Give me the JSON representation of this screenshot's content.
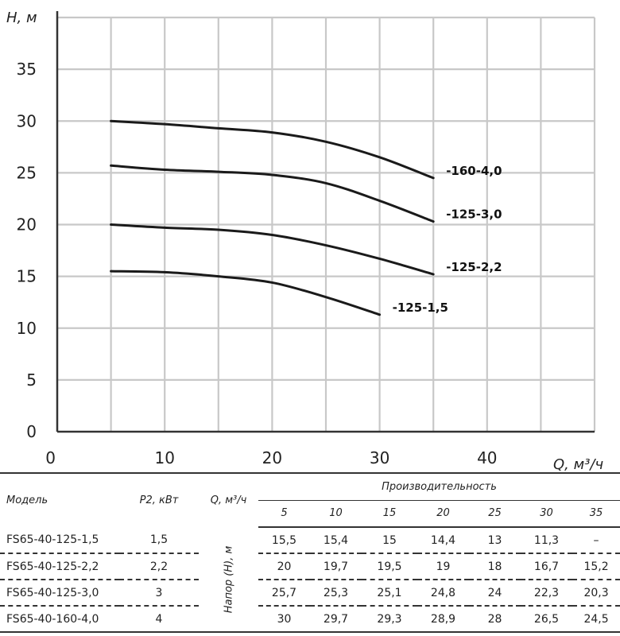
{
  "chart_data": {
    "type": "line",
    "xlabel": "Q, м³/ч",
    "ylabel": "H, м",
    "xlim": [
      0,
      50
    ],
    "ylim": [
      0,
      40
    ],
    "x_ticks": [
      0,
      10,
      20,
      30,
      40
    ],
    "y_ticks": [
      0,
      5,
      10,
      15,
      20,
      25,
      30,
      35
    ],
    "grid": true,
    "series": [
      {
        "name": "-160-4,0",
        "x": [
          5,
          10,
          15,
          20,
          25,
          30,
          35
        ],
        "y": [
          30,
          29.7,
          29.3,
          28.9,
          28,
          26.5,
          24.5
        ]
      },
      {
        "name": "-125-3,0",
        "x": [
          5,
          10,
          15,
          20,
          25,
          30,
          35
        ],
        "y": [
          25.7,
          25.3,
          25.1,
          24.8,
          24,
          22.3,
          20.3
        ]
      },
      {
        "name": "-125-2,2",
        "x": [
          5,
          10,
          15,
          20,
          25,
          30,
          35
        ],
        "y": [
          20,
          19.7,
          19.5,
          19,
          18,
          16.7,
          15.2
        ]
      },
      {
        "name": "-125-1,5",
        "x": [
          5,
          10,
          15,
          20,
          25,
          30
        ],
        "y": [
          15.5,
          15.4,
          15,
          14.4,
          13,
          11.3
        ]
      }
    ]
  },
  "table": {
    "col_model": "Модель",
    "col_power": "P2, кВт",
    "col_flow": "Q, м³/ч",
    "col_perf": "Производительность",
    "head_axis_label": "Напор (H), м",
    "flows": [
      "5",
      "10",
      "15",
      "20",
      "25",
      "30",
      "35"
    ],
    "rows": [
      {
        "model": "FS65-40-125-1,5",
        "power": "1,5",
        "values": [
          "15,5",
          "15,4",
          "15",
          "14,4",
          "13",
          "11,3",
          "–"
        ]
      },
      {
        "model": "FS65-40-125-2,2",
        "power": "2,2",
        "values": [
          "20",
          "19,7",
          "19,5",
          "19",
          "18",
          "16,7",
          "15,2"
        ]
      },
      {
        "model": "FS65-40-125-3,0",
        "power": "3",
        "values": [
          "25,7",
          "25,3",
          "25,1",
          "24,8",
          "24",
          "22,3",
          "20,3"
        ]
      },
      {
        "model": "FS65-40-160-4,0",
        "power": "4",
        "values": [
          "30",
          "29,7",
          "29,3",
          "28,9",
          "28",
          "26,5",
          "24,5"
        ]
      }
    ]
  }
}
